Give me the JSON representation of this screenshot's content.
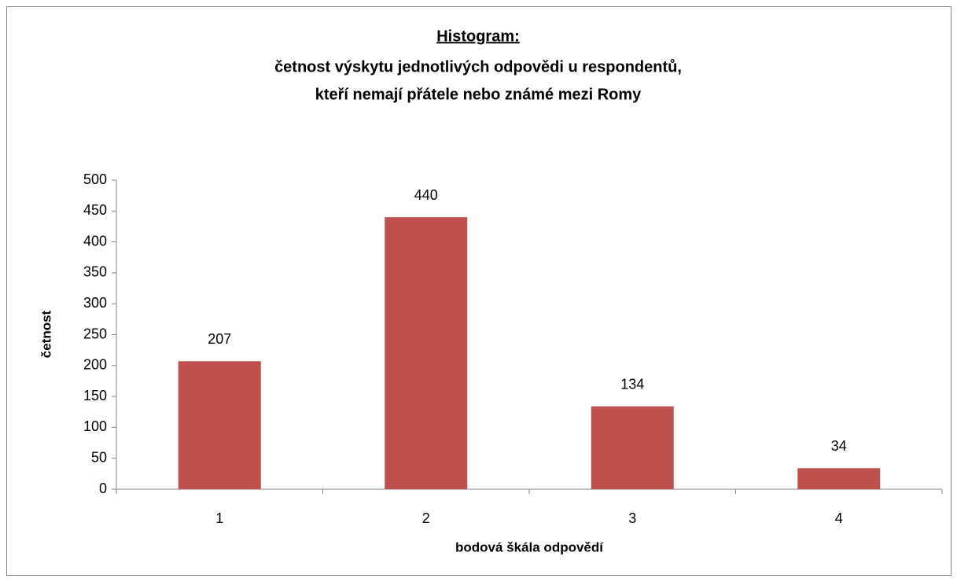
{
  "chart_data": {
    "type": "bar",
    "title": [
      "Histogram:",
      "četnost výskytu jednotlivých odpovědi u respondentů,",
      "kteří nemají přátele nebo známé mezi Romy"
    ],
    "x_label": "bodová škála odpovědí",
    "y_label": "četnost",
    "categories": [
      "1",
      "2",
      "3",
      "4"
    ],
    "values": [
      207,
      440,
      134,
      34
    ],
    "color": "#c0504d",
    "ylim": [
      0,
      500
    ],
    "yticks": [
      0,
      50,
      100,
      150,
      200,
      250,
      300,
      350,
      400,
      450,
      500
    ],
    "grid": false
  }
}
